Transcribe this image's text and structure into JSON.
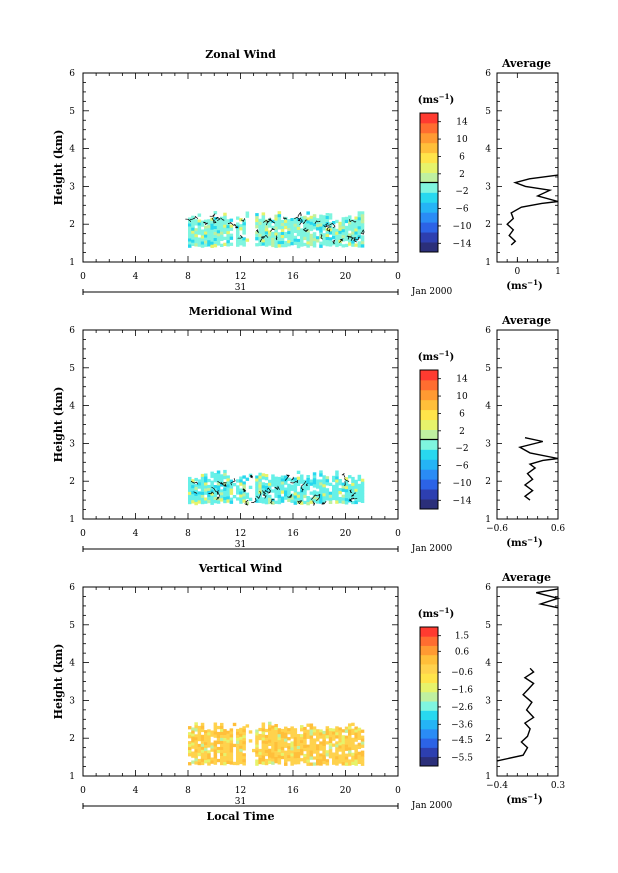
{
  "chart_data": [
    {
      "type": "heatmap",
      "title": "Zonal Wind",
      "ylabel": "Height (km)",
      "xlabel": "",
      "x_ticks": [
        "0",
        "4",
        "8",
        "12",
        "16",
        "20",
        "0"
      ],
      "xlim": [
        0,
        24
      ],
      "y_ticks": [
        "1",
        "2",
        "3",
        "4",
        "5",
        "6"
      ],
      "ylim": [
        1,
        6
      ],
      "day_label": "31",
      "month_label": "Jan 2000",
      "colorbar": {
        "unit": "(ms",
        "unit_exp": "−1",
        "ticks": [
          "14",
          "10",
          "6",
          "2",
          "−2",
          "−6",
          "−10",
          "−14"
        ],
        "min": -16,
        "max": 16,
        "zero_line": 0
      },
      "data_region": {
        "x_start": 8,
        "x_end": 21.3,
        "y_bottom": 1.45,
        "y_top": 2.35
      },
      "dominant_color": "#7ff5df",
      "average_profile": {
        "title": "Average",
        "xlabel": "(ms",
        "xlabel_exp": "−1",
        "x_ticks": [
          "0",
          "1"
        ],
        "xlim": [
          -0.5,
          1
        ],
        "y_ticks": [
          "1",
          "2",
          "3",
          "4",
          "5",
          "6"
        ],
        "ylim": [
          1,
          6
        ],
        "points": [
          [
            -0.15,
            1.45
          ],
          [
            -0.05,
            1.55
          ],
          [
            -0.2,
            1.7
          ],
          [
            -0.1,
            1.85
          ],
          [
            -0.25,
            2.0
          ],
          [
            -0.1,
            2.15
          ],
          [
            -0.15,
            2.3
          ],
          [
            0.1,
            2.45
          ],
          [
            0.6,
            2.55
          ],
          [
            1.0,
            2.6
          ],
          [
            0.5,
            2.75
          ],
          [
            0.8,
            2.9
          ],
          [
            0.2,
            3.0
          ],
          [
            -0.05,
            3.1
          ],
          [
            0.3,
            3.2
          ],
          [
            1.0,
            3.3
          ]
        ]
      }
    },
    {
      "type": "heatmap",
      "title": "Meridional Wind",
      "ylabel": "Height (km)",
      "xlabel": "",
      "x_ticks": [
        "0",
        "4",
        "8",
        "12",
        "16",
        "20",
        "0"
      ],
      "xlim": [
        0,
        24
      ],
      "y_ticks": [
        "1",
        "2",
        "3",
        "4",
        "5",
        "6"
      ],
      "ylim": [
        1,
        6
      ],
      "day_label": "31",
      "month_label": "Jan 2000",
      "colorbar": {
        "unit": "(ms",
        "unit_exp": "−1",
        "ticks": [
          "14",
          "10",
          "6",
          "2",
          "−2",
          "−6",
          "−10",
          "−14"
        ],
        "min": -16,
        "max": 16,
        "zero_line": 0
      },
      "data_region": {
        "x_start": 8,
        "x_end": 21.3,
        "y_bottom": 1.45,
        "y_top": 2.3
      },
      "dominant_color": "#66f0e8",
      "average_profile": {
        "title": "Average",
        "xlabel": "(ms",
        "xlabel_exp": "−1",
        "x_ticks": [
          "−0.6",
          "0.6"
        ],
        "xlim": [
          -0.6,
          0.6
        ],
        "y_ticks": [
          "1",
          "2",
          "3",
          "4",
          "5",
          "6"
        ],
        "ylim": [
          1,
          6
        ],
        "points": [
          [
            0.05,
            1.5
          ],
          [
            -0.05,
            1.6
          ],
          [
            0.1,
            1.75
          ],
          [
            -0.05,
            1.9
          ],
          [
            0.1,
            2.05
          ],
          [
            0.0,
            2.2
          ],
          [
            0.15,
            2.35
          ],
          [
            0.05,
            2.45
          ],
          [
            0.3,
            2.55
          ],
          [
            0.6,
            2.6
          ],
          [
            0.05,
            2.75
          ],
          [
            -0.15,
            2.9
          ],
          [
            0.3,
            3.05
          ],
          [
            -0.05,
            3.15
          ]
        ]
      }
    },
    {
      "type": "heatmap",
      "title": "Vertical Wind",
      "ylabel": "Height (km)",
      "xlabel": "Local Time",
      "x_ticks": [
        "0",
        "4",
        "8",
        "12",
        "16",
        "20",
        "0"
      ],
      "xlim": [
        0,
        24
      ],
      "y_ticks": [
        "1",
        "2",
        "3",
        "4",
        "5",
        "6"
      ],
      "ylim": [
        1,
        6
      ],
      "day_label": "31",
      "month_label": "Jan 2000",
      "colorbar": {
        "unit": "(ms",
        "unit_exp": "−1",
        "ticks": [
          "1.5",
          "0.6",
          "−0.6",
          "−1.6",
          "−2.6",
          "−3.6",
          "−4.5",
          "−5.5"
        ],
        "min": -6,
        "max": 2
      },
      "data_region": {
        "x_start": 8,
        "x_end": 21.3,
        "y_bottom": 1.35,
        "y_top": 2.45
      },
      "dominant_color": "#ffd24d",
      "average_profile": {
        "title": "Average",
        "xlabel": "(ms",
        "xlabel_exp": "−1",
        "x_ticks": [
          "−0.4",
          "0.3"
        ],
        "xlim": [
          -0.4,
          0.3
        ],
        "y_ticks": [
          "1",
          "2",
          "3",
          "4",
          "5",
          "6"
        ],
        "ylim": [
          1,
          6
        ],
        "points": [
          [
            -0.4,
            1.4
          ],
          [
            -0.1,
            1.55
          ],
          [
            -0.05,
            1.75
          ],
          [
            -0.12,
            1.9
          ],
          [
            -0.05,
            2.05
          ],
          [
            -0.02,
            2.25
          ],
          [
            -0.08,
            2.4
          ],
          [
            0.02,
            2.55
          ],
          [
            -0.06,
            2.75
          ],
          [
            0.0,
            2.95
          ],
          [
            -0.1,
            3.15
          ],
          [
            -0.04,
            3.3
          ],
          [
            0.02,
            3.45
          ],
          [
            -0.08,
            3.6
          ],
          [
            0.02,
            3.75
          ],
          [
            -0.02,
            3.85
          ],
          [
            0.3,
            5.45
          ],
          [
            0.1,
            5.55
          ],
          [
            0.3,
            5.7
          ],
          [
            0.05,
            5.85
          ],
          [
            0.3,
            5.95
          ]
        ]
      }
    }
  ]
}
